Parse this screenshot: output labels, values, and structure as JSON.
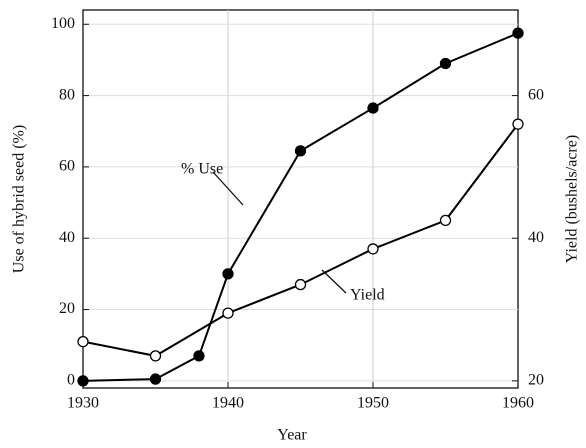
{
  "chart_data": {
    "type": "line",
    "xlabel": "Year",
    "ylabel": "Use of hybrid seed (%)",
    "y2label": "Yield (bushels/acre)",
    "xlim": [
      1930,
      1960
    ],
    "xticks": [
      1930,
      1940,
      1950,
      1960
    ],
    "ylim": [
      -2,
      104
    ],
    "yticks": [
      0,
      20,
      40,
      60,
      80,
      100
    ],
    "y2lim": [
      19,
      72
    ],
    "y2ticks": [
      20,
      40,
      60
    ],
    "grid": true,
    "series": [
      {
        "name": "% Use",
        "color": "#000000",
        "marker": "filled",
        "x": [
          1930,
          1935,
          1938,
          1940,
          1945,
          1950,
          1955,
          1960
        ],
        "values": [
          0,
          0.5,
          7,
          30,
          64.5,
          76.5,
          89,
          97.5
        ]
      },
      {
        "name": "Yield",
        "color": "#000000",
        "marker": "open",
        "axis": "y2",
        "x": [
          1930,
          1935,
          1940,
          1945,
          1950,
          1955,
          1960
        ],
        "values": [
          25.5,
          23.5,
          29.5,
          33.5,
          38.5,
          42.5,
          56
        ]
      }
    ]
  }
}
